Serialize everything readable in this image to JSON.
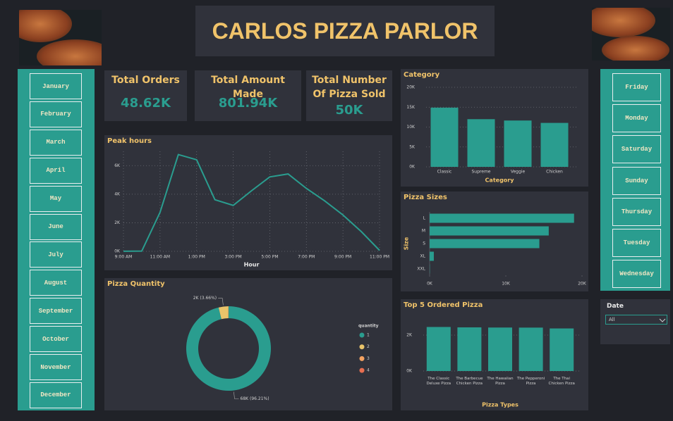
{
  "header": {
    "title": "CARLOS PIZZA PARLOR"
  },
  "months": [
    "January",
    "February",
    "March",
    "April",
    "May",
    "June",
    "July",
    "August",
    "September",
    "October",
    "November",
    "December"
  ],
  "days": [
    "Friday",
    "Monday",
    "Saturday",
    "Sunday",
    "Thursday",
    "Tuesday",
    "Wednesday"
  ],
  "date_slicer": {
    "title": "Date",
    "value": "All"
  },
  "kpis": [
    {
      "title": "Total Orders",
      "value": "48.62K"
    },
    {
      "title": "Total Amount Made",
      "value": "801.94K"
    },
    {
      "title": "Total Number Of Pizza Sold",
      "value": "50K"
    }
  ],
  "chart_data": [
    {
      "type": "line",
      "title": "Peak hours",
      "x_label": "Hour",
      "color": "#2a9d8f",
      "x": [
        9,
        10,
        11,
        12,
        13,
        14,
        15,
        16,
        17,
        18,
        19,
        20,
        21,
        22,
        23
      ],
      "values": [
        4,
        18,
        2728,
        6776,
        6413,
        3613,
        3216,
        4239,
        5211,
        5417,
        4406,
        3534,
        2545,
        1386,
        68
      ],
      "xlim": [
        9,
        23
      ],
      "xticks": [
        {
          "value": 9,
          "label": "9:00 AM"
        },
        {
          "value": 11,
          "label": "11:00 AM"
        },
        {
          "value": 13,
          "label": "1:00 PM"
        },
        {
          "value": 15,
          "label": "3:00 PM"
        },
        {
          "value": 17,
          "label": "5:00 PM"
        },
        {
          "value": 19,
          "label": "7:00 PM"
        },
        {
          "value": 21,
          "label": "9:00 PM"
        },
        {
          "value": 23,
          "label": "11:00 PM"
        }
      ],
      "ylim": [
        0,
        7000
      ],
      "yticks": [
        {
          "value": 0,
          "label": "0K"
        },
        {
          "value": 2000,
          "label": "2K"
        },
        {
          "value": 4000,
          "label": "4K"
        },
        {
          "value": 6000,
          "label": "6K"
        }
      ],
      "grid": true
    },
    {
      "type": "donut",
      "title": "Pizza Quantity",
      "legend_title": "quantity",
      "categories": [
        "1",
        "2",
        "3",
        "4"
      ],
      "values": [
        96.21,
        3.66,
        0.1,
        0.03
      ],
      "value_labels": [
        "68K (96.21%)",
        "2K (3.66%)",
        null,
        null
      ],
      "colors": [
        "#2a9d8f",
        "#e9c46a",
        "#f4a261",
        "#e76f51"
      ]
    },
    {
      "type": "bar",
      "title": "Category",
      "x_label": "Category",
      "color": "#2a9d8f",
      "categories": [
        "Classic",
        "Supreme",
        "Veggie",
        "Chicken"
      ],
      "values": [
        14888,
        11987,
        11649,
        11050
      ],
      "ylim": [
        0,
        20000
      ],
      "yticks": [
        {
          "value": 0,
          "label": "0K"
        },
        {
          "value": 5000,
          "label": "5K"
        },
        {
          "value": 10000,
          "label": "10K"
        },
        {
          "value": 15000,
          "label": "15K"
        },
        {
          "value": 20000,
          "label": "20K"
        }
      ],
      "grid": true
    },
    {
      "type": "hbar",
      "title": "Pizza Sizes",
      "y_label": "Size",
      "color": "#2a9d8f",
      "categories": [
        "L",
        "M",
        "S",
        "XL",
        "XXL"
      ],
      "values": [
        18956,
        15635,
        14403,
        552,
        28
      ],
      "xlim": [
        0,
        20000
      ],
      "xticks": [
        {
          "value": 0,
          "label": "0K"
        },
        {
          "value": 10000,
          "label": "10K"
        },
        {
          "value": 20000,
          "label": "20K"
        }
      ]
    },
    {
      "type": "bar",
      "title": "Top 5 Ordered Pizza",
      "x_label": "Pizza Types",
      "color": "#2a9d8f",
      "categories": [
        "The Classic Deluxe Pizza",
        "The Barbecue Chicken Pizza",
        "The Hawaiian Pizza",
        "The Pepperoni Pizza",
        "The Thai Chicken Pizza"
      ],
      "values": [
        2453,
        2432,
        2422,
        2418,
        2371
      ],
      "ylim": [
        0,
        2800
      ],
      "yticks": [
        {
          "value": 0,
          "label": "0K"
        },
        {
          "value": 2000,
          "label": "2K"
        }
      ],
      "grid": true
    }
  ]
}
